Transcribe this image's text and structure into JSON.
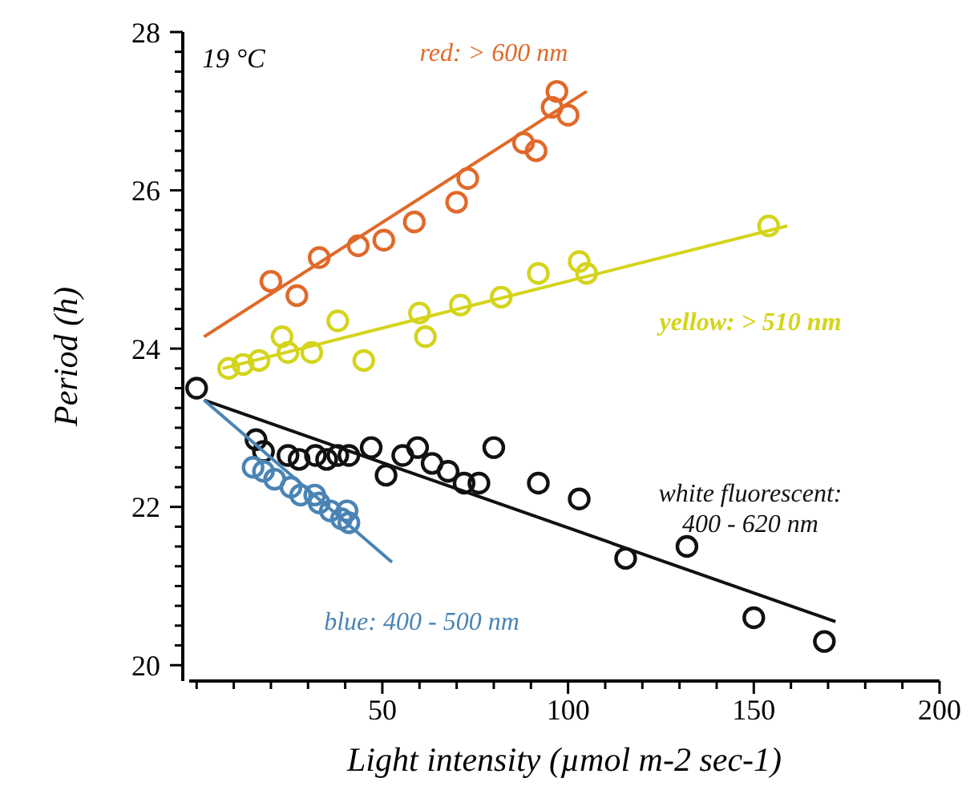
{
  "chart_data": {
    "type": "scatter",
    "xlabel": "Light intensity (µmol m-2 sec-1)",
    "ylabel": "Period (h)",
    "annotations": [
      "19 °C"
    ],
    "xlim": [
      -2,
      200
    ],
    "ylim": [
      19.8,
      28
    ],
    "grid": false,
    "xticks": [
      {
        "value": 0,
        "label": null
      },
      {
        "value": 10,
        "label": null
      },
      {
        "value": 20,
        "label": null
      },
      {
        "value": 30,
        "label": null
      },
      {
        "value": 40,
        "label": null
      },
      50,
      {
        "value": 60,
        "label": null
      },
      {
        "value": 70,
        "label": null
      },
      {
        "value": 80,
        "label": null
      },
      {
        "value": 90,
        "label": null
      },
      100,
      {
        "value": 110,
        "label": null
      },
      {
        "value": 120,
        "label": null
      },
      {
        "value": 130,
        "label": null
      },
      {
        "value": 140,
        "label": null
      },
      150,
      {
        "value": 160,
        "label": null
      },
      {
        "value": 170,
        "label": null
      },
      {
        "value": 180,
        "label": null
      },
      {
        "value": 190,
        "label": null
      },
      200
    ],
    "yticks": [
      20,
      {
        "value": 20.25,
        "label": null
      },
      {
        "value": 20.5,
        "label": null
      },
      {
        "value": 20.75,
        "label": null
      },
      {
        "value": 21,
        "label": null
      },
      {
        "value": 21.25,
        "label": null
      },
      {
        "value": 21.5,
        "label": null
      },
      {
        "value": 21.75,
        "label": null
      },
      22,
      {
        "value": 22.25,
        "label": null
      },
      {
        "value": 22.5,
        "label": null
      },
      {
        "value": 22.75,
        "label": null
      },
      {
        "value": 23,
        "label": null
      },
      {
        "value": 23.25,
        "label": null
      },
      {
        "value": 23.5,
        "label": null
      },
      {
        "value": 23.75,
        "label": null
      },
      24,
      {
        "value": 24.25,
        "label": null
      },
      {
        "value": 24.5,
        "label": null
      },
      {
        "value": 24.75,
        "label": null
      },
      {
        "value": 25,
        "label": null
      },
      {
        "value": 25.25,
        "label": null
      },
      {
        "value": 25.5,
        "label": null
      },
      {
        "value": 25.75,
        "label": null
      },
      26,
      {
        "value": 26.25,
        "label": null
      },
      {
        "value": 26.5,
        "label": null
      },
      {
        "value": 26.75,
        "label": null
      },
      {
        "value": 27,
        "label": null
      },
      {
        "value": 27.25,
        "label": null
      },
      {
        "value": 27.5,
        "label": null
      },
      {
        "value": 27.75,
        "label": null
      },
      28
    ],
    "series": [
      {
        "name": "red: > 600 nm",
        "color": "#e0692a",
        "marker": "circle",
        "x": [
          20,
          27,
          33,
          43.5,
          50.4,
          58.6,
          70,
          73,
          88,
          91.4,
          95.7,
          97,
          100
        ],
        "values": [
          24.85,
          24.67,
          25.15,
          25.3,
          25.37,
          25.6,
          25.85,
          26.15,
          26.6,
          26.5,
          27.05,
          27.25,
          26.95
        ]
      },
      {
        "name": "yellow: > 510 nm",
        "color": "#d4d41c",
        "marker": "circle",
        "x": [
          8.6,
          12.5,
          16.8,
          23,
          24.6,
          31,
          38,
          45,
          60,
          61.6,
          71,
          82,
          92,
          103,
          105,
          154
        ],
        "values": [
          23.75,
          23.8,
          23.85,
          24.15,
          23.95,
          23.95,
          24.35,
          23.85,
          24.45,
          24.15,
          24.55,
          24.65,
          24.95,
          25.1,
          24.95,
          25.55
        ]
      },
      {
        "name": "white fluorescent: 400 - 620 nm",
        "color": "#111111",
        "marker": "circle",
        "x": [
          0,
          16,
          18,
          24.6,
          27.6,
          32,
          35,
          38,
          41,
          47,
          51,
          55.5,
          59.5,
          63.4,
          67.7,
          72,
          76,
          80,
          92,
          103,
          115.5,
          132,
          150,
          169
        ],
        "values": [
          23.5,
          22.85,
          22.7,
          22.65,
          22.6,
          22.65,
          22.6,
          22.65,
          22.65,
          22.75,
          22.4,
          22.65,
          22.75,
          22.55,
          22.45,
          22.3,
          22.3,
          22.75,
          22.3,
          22.1,
          21.35,
          21.5,
          20.6,
          20.3
        ]
      },
      {
        "name": "blue: 400 - 500 nm",
        "color": "#4a84b5",
        "marker": "circle",
        "x": [
          15.2,
          18,
          21,
          25.4,
          28,
          31.8,
          33,
          36,
          39,
          40.5,
          41
        ],
        "values": [
          22.5,
          22.45,
          22.35,
          22.25,
          22.15,
          22.15,
          22.05,
          21.95,
          21.85,
          21.95,
          21.8
        ]
      },
      {
        "type": "line",
        "color": "#e0692a",
        "x": [
          2,
          105
        ],
        "values": [
          24.15,
          27.25
        ]
      },
      {
        "type": "line",
        "color": "#d4d41c",
        "x": [
          7,
          159
        ],
        "values": [
          23.75,
          25.55
        ]
      },
      {
        "type": "line",
        "color": "#111111",
        "x": [
          2,
          172
        ],
        "values": [
          23.35,
          20.55
        ]
      },
      {
        "type": "line",
        "color": "#4a84b5",
        "x": [
          2,
          52.6
        ],
        "values": [
          23.35,
          21.3
        ]
      }
    ]
  }
}
